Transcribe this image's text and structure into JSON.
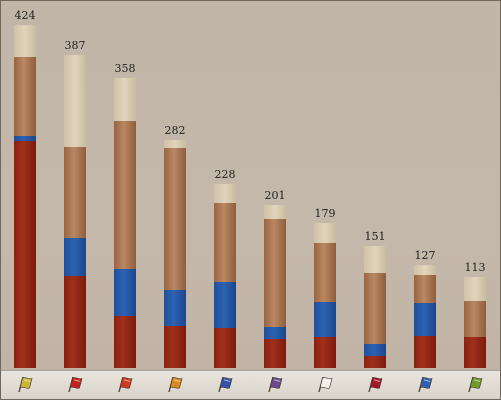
{
  "chart_data": {
    "type": "bar",
    "stacked": true,
    "categories": [
      "flag-1",
      "flag-2",
      "flag-3",
      "flag-4",
      "flag-5",
      "flag-6",
      "flag-7",
      "flag-8",
      "flag-9",
      "flag-10"
    ],
    "totals": [
      424,
      387,
      358,
      282,
      228,
      201,
      179,
      151,
      127,
      113
    ],
    "series": [
      {
        "color": "#9a2a14",
        "values": [
          281,
          114,
          64,
          52,
          50,
          36,
          38,
          15,
          40,
          38
        ]
      },
      {
        "color": "#2a5aa8",
        "values": [
          6,
          47,
          58,
          45,
          56,
          15,
          44,
          15,
          40,
          0
        ]
      },
      {
        "color": "#a8744f",
        "values": [
          98,
          112,
          183,
          175,
          98,
          133,
          73,
          88,
          35,
          45
        ]
      },
      {
        "color": "#d8ccb2",
        "values": [
          39,
          114,
          53,
          10,
          24,
          17,
          24,
          33,
          12,
          30
        ]
      }
    ]
  },
  "flags": [
    {
      "icon": "yellow-green-flag-icon",
      "color": "#c9b53a"
    },
    {
      "icon": "red-white-cross-flag-icon",
      "color": "#c4221f"
    },
    {
      "icon": "red-yellow-flag-icon",
      "color": "#d13a1e"
    },
    {
      "icon": "orange-flag-icon",
      "color": "#d78a1e"
    },
    {
      "icon": "red-white-blue-flag-icon",
      "color": "#3452a8"
    },
    {
      "icon": "purple-flag-icon",
      "color": "#6b4a8c"
    },
    {
      "icon": "white-flag-icon",
      "color": "#f2f0ea"
    },
    {
      "icon": "red-white-flag-icon",
      "color": "#a3192a"
    },
    {
      "icon": "blue-yellow-flag-icon",
      "color": "#2f5fb0"
    },
    {
      "icon": "green-flag-icon",
      "color": "#6f9a2c"
    }
  ]
}
